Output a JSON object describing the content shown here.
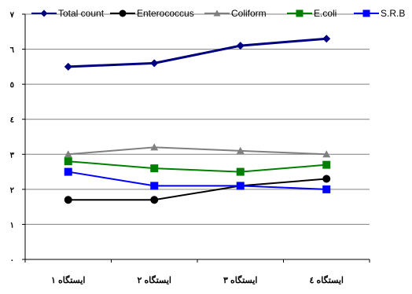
{
  "chart_data": {
    "type": "line",
    "title": "",
    "xlabel": "",
    "ylabel": "",
    "categories": [
      "ایستگاه ۱",
      "ایستگاه ۲",
      "ایستگاه ۳",
      "ایستگاه ٤"
    ],
    "y_ticks": [
      "۰",
      "۱",
      "۲",
      "۳",
      "٤",
      "٥",
      "٦",
      "۷"
    ],
    "ylim": [
      0,
      7
    ],
    "grid": true,
    "legend_position": "top",
    "series": [
      {
        "name": "Total count",
        "color": "#000080",
        "marker": "diamond",
        "values": [
          5.5,
          5.6,
          6.1,
          6.3
        ]
      },
      {
        "name": "Enterococcus",
        "color": "#000000",
        "marker": "circle",
        "values": [
          1.7,
          1.7,
          2.1,
          2.3
        ]
      },
      {
        "name": "Coliform",
        "color": "#808080",
        "marker": "triangle",
        "values": [
          3.0,
          3.2,
          3.1,
          3.0
        ]
      },
      {
        "name": "E.coli",
        "color": "#008000",
        "marker": "square",
        "values": [
          2.8,
          2.6,
          2.5,
          2.7
        ]
      },
      {
        "name": "S.R.B",
        "color": "#0000FF",
        "marker": "square",
        "values": [
          2.5,
          2.1,
          2.1,
          2.0
        ]
      }
    ]
  }
}
